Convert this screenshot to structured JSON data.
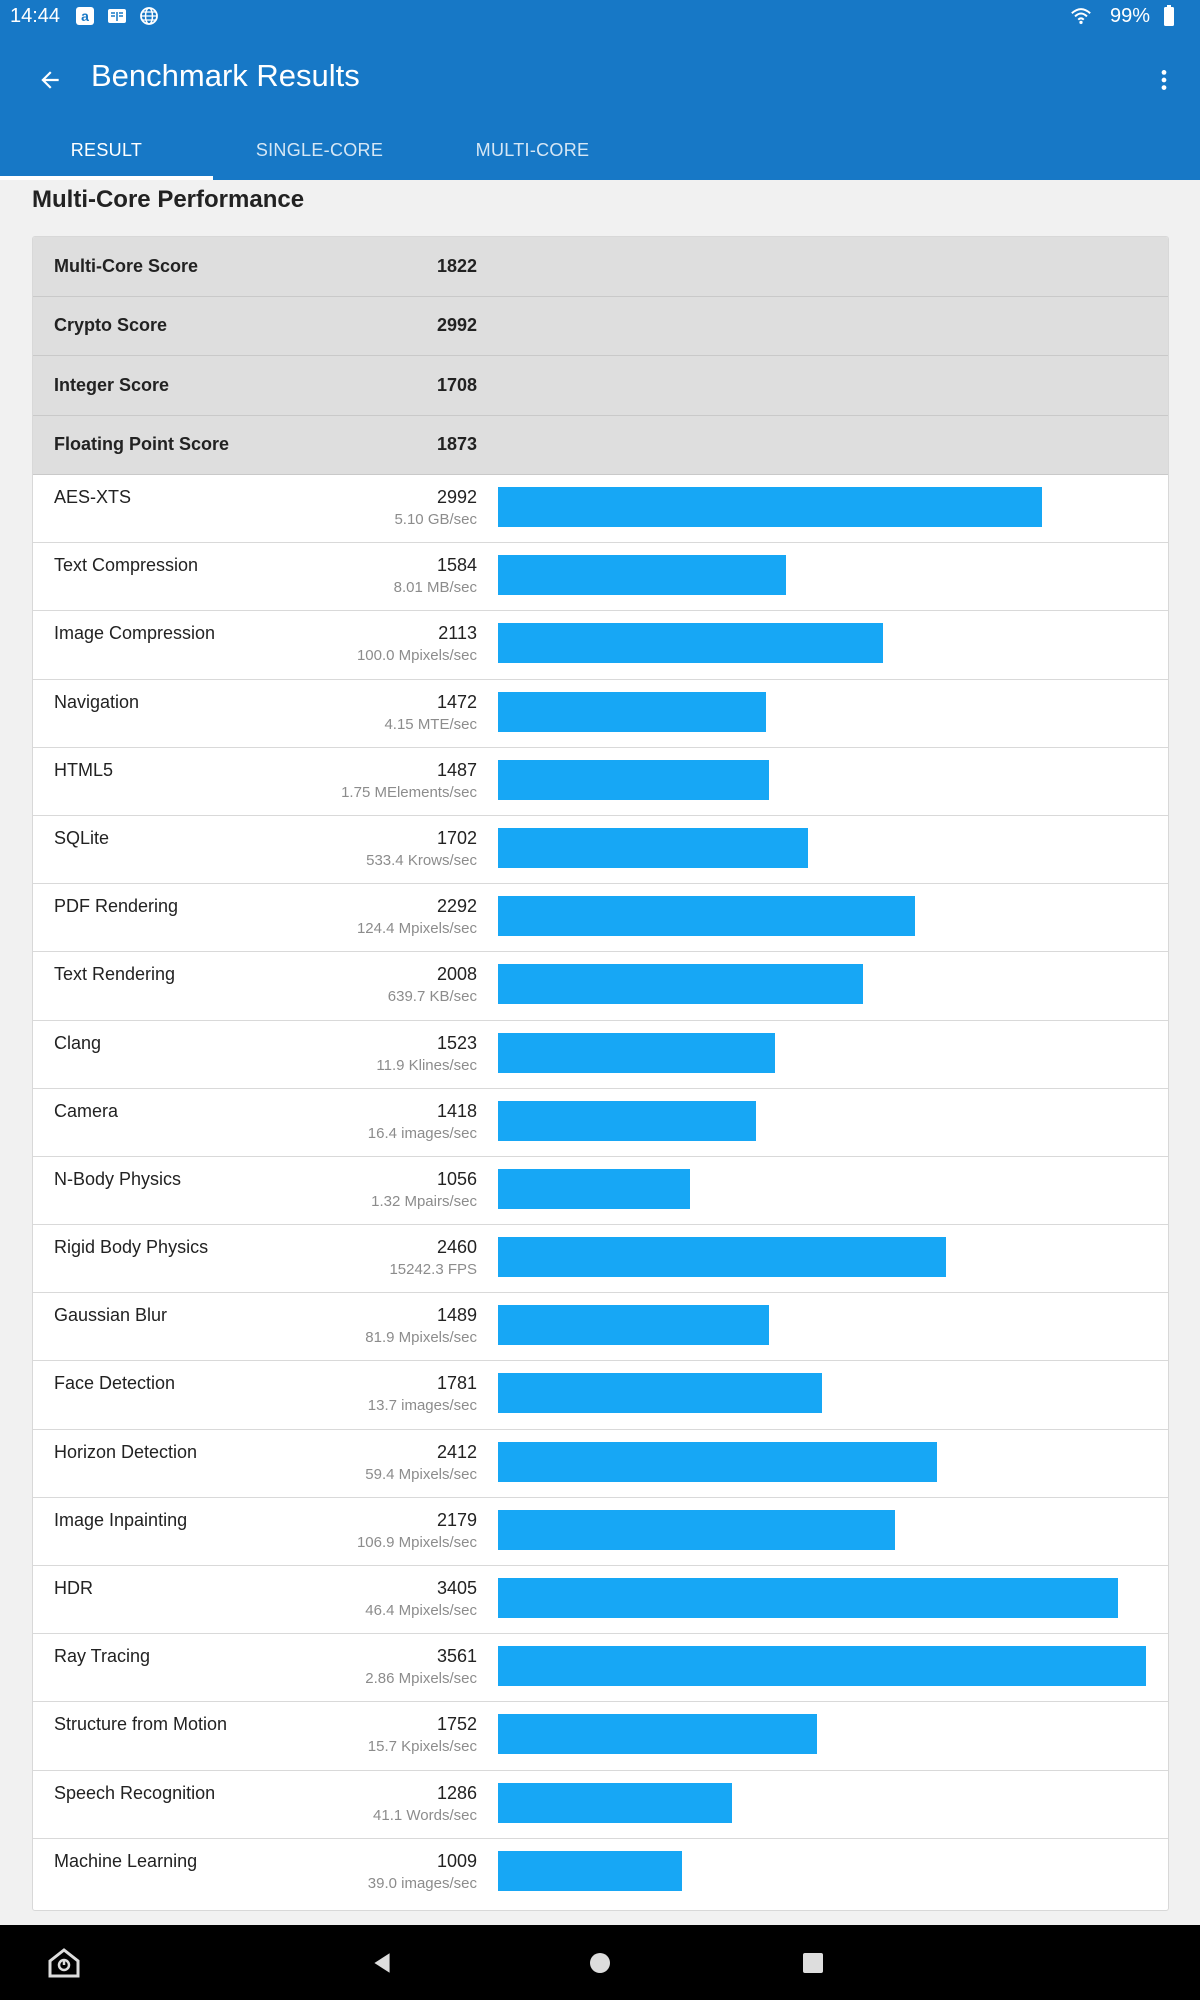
{
  "status_bar": {
    "time": "14:44",
    "battery": "99%"
  },
  "header": {
    "title": "Benchmark Results"
  },
  "tabs": [
    {
      "label": "RESULT",
      "active": true
    },
    {
      "label": "SINGLE-CORE",
      "active": false
    },
    {
      "label": "MULTI-CORE",
      "active": false
    }
  ],
  "section": {
    "title": "Multi-Core Performance"
  },
  "scores": [
    {
      "label": "Multi-Core Score",
      "value": "1822"
    },
    {
      "label": "Crypto Score",
      "value": "2992"
    },
    {
      "label": "Integer Score",
      "value": "1708"
    },
    {
      "label": "Floating Point Score",
      "value": "1873"
    }
  ],
  "benchmarks": [
    {
      "name": "AES-XTS",
      "score": 2992,
      "rate": "5.10 GB/sec"
    },
    {
      "name": "Text Compression",
      "score": 1584,
      "rate": "8.01 MB/sec"
    },
    {
      "name": "Image Compression",
      "score": 2113,
      "rate": "100.0 Mpixels/sec"
    },
    {
      "name": "Navigation",
      "score": 1472,
      "rate": "4.15 MTE/sec"
    },
    {
      "name": "HTML5",
      "score": 1487,
      "rate": "1.75 MElements/sec"
    },
    {
      "name": "SQLite",
      "score": 1702,
      "rate": "533.4 Krows/sec"
    },
    {
      "name": "PDF Rendering",
      "score": 2292,
      "rate": "124.4 Mpixels/sec"
    },
    {
      "name": "Text Rendering",
      "score": 2008,
      "rate": "639.7 KB/sec"
    },
    {
      "name": "Clang",
      "score": 1523,
      "rate": "11.9 Klines/sec"
    },
    {
      "name": "Camera",
      "score": 1418,
      "rate": "16.4 images/sec"
    },
    {
      "name": "N-Body Physics",
      "score": 1056,
      "rate": "1.32 Mpairs/sec"
    },
    {
      "name": "Rigid Body Physics",
      "score": 2460,
      "rate": "15242.3 FPS"
    },
    {
      "name": "Gaussian Blur",
      "score": 1489,
      "rate": "81.9 Mpixels/sec"
    },
    {
      "name": "Face Detection",
      "score": 1781,
      "rate": "13.7 images/sec"
    },
    {
      "name": "Horizon Detection",
      "score": 2412,
      "rate": "59.4 Mpixels/sec"
    },
    {
      "name": "Image Inpainting",
      "score": 2179,
      "rate": "106.9 Mpixels/sec"
    },
    {
      "name": "HDR",
      "score": 3405,
      "rate": "46.4 Mpixels/sec"
    },
    {
      "name": "Ray Tracing",
      "score": 3561,
      "rate": "2.86 Mpixels/sec"
    },
    {
      "name": "Structure from Motion",
      "score": 1752,
      "rate": "15.7 Kpixels/sec"
    },
    {
      "name": "Speech Recognition",
      "score": 1286,
      "rate": "41.1 Words/sec"
    },
    {
      "name": "Machine Learning",
      "score": 1009,
      "rate": "39.0 images/sec"
    }
  ],
  "colors": {
    "primary": "#1778c6",
    "bar": "#17a7f5"
  },
  "icons": {
    "back": "arrow-back-icon",
    "menu": "more-vert-icon"
  }
}
